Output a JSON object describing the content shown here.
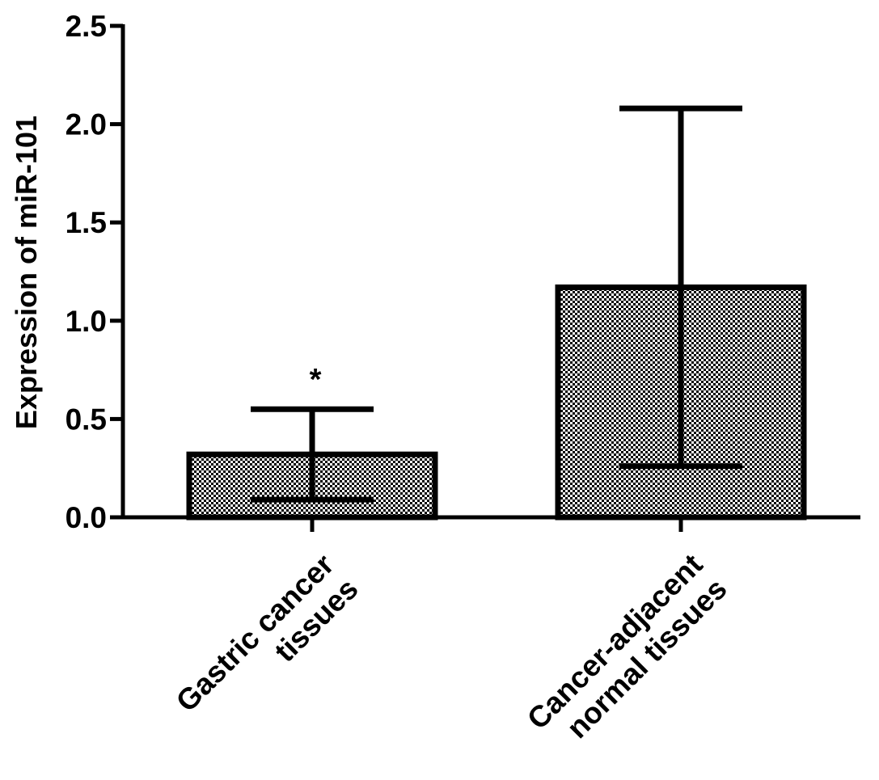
{
  "chart_data": {
    "type": "bar",
    "categories": [
      "Gastric cancer tissues",
      "Cancer-adjacent normal tissues"
    ],
    "category_label_lines": [
      [
        "Gastric cancer",
        "tissues"
      ],
      [
        "Cancer-adjacent",
        "normal tissues"
      ]
    ],
    "values": [
      0.32,
      1.17
    ],
    "error_upper": [
      0.55,
      2.08
    ],
    "error_lower": [
      0.09,
      0.26
    ],
    "significance": [
      "*",
      ""
    ],
    "ylabel": "Expression of miR-101",
    "ylim": [
      0,
      2.5
    ],
    "yticks": [
      "0.0",
      "0.5",
      "1.0",
      "1.5",
      "2.0",
      "2.5"
    ],
    "ytick_values": [
      0,
      0.5,
      1.0,
      1.5,
      2.0,
      2.5
    ],
    "bar_fill": "checkered",
    "colors": {
      "bar_outline": "#000000",
      "axis": "#000000",
      "pattern": "#000000"
    },
    "grid": false,
    "legend": "none"
  }
}
